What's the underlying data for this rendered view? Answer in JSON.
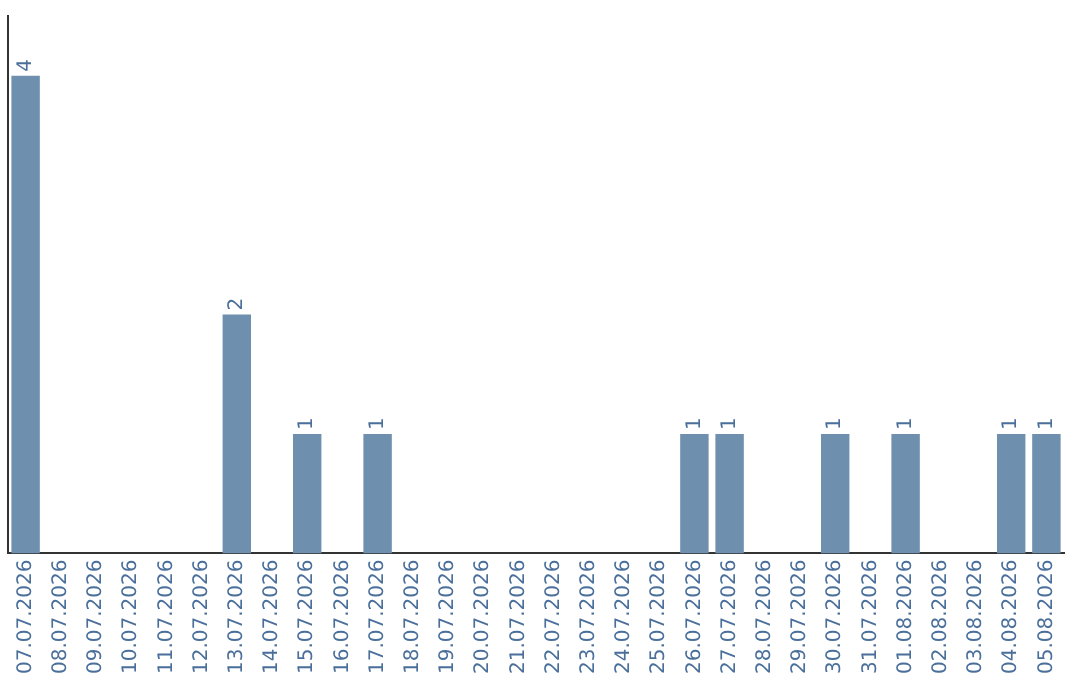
{
  "chart_data": {
    "type": "bar",
    "categories": [
      "07.07.2026",
      "08.07.2026",
      "09.07.2026",
      "10.07.2026",
      "11.07.2026",
      "12.07.2026",
      "13.07.2026",
      "14.07.2026",
      "15.07.2026",
      "16.07.2026",
      "17.07.2026",
      "18.07.2026",
      "19.07.2026",
      "20.07.2026",
      "21.07.2026",
      "22.07.2026",
      "23.07.2026",
      "24.07.2026",
      "25.07.2026",
      "26.07.2026",
      "27.07.2026",
      "28.07.2026",
      "29.07.2026",
      "30.07.2026",
      "31.07.2026",
      "01.08.2026",
      "02.08.2026",
      "03.08.2026",
      "04.08.2026",
      "05.08.2026"
    ],
    "values": [
      4,
      0,
      0,
      0,
      0,
      0,
      2,
      0,
      1,
      0,
      1,
      0,
      0,
      0,
      0,
      0,
      0,
      0,
      0,
      1,
      1,
      0,
      0,
      1,
      0,
      1,
      0,
      0,
      1,
      1
    ],
    "value_labels": [
      "4",
      null,
      null,
      null,
      null,
      null,
      "2",
      null,
      "1",
      null,
      "1",
      null,
      null,
      null,
      null,
      null,
      null,
      null,
      null,
      "1",
      "1",
      null,
      null,
      "1",
      null,
      "1",
      null,
      null,
      "1",
      "1"
    ],
    "color": "#6f8faf",
    "grid": false,
    "legend": false
  }
}
